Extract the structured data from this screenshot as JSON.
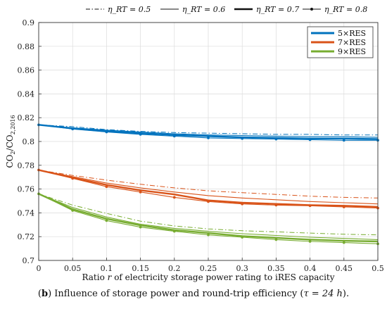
{
  "chart_data": {
    "type": "line",
    "x_label_parts": [
      "Ratio ",
      "r",
      " of electricity storage power rating to iRES capacity"
    ],
    "y_label_parts": [
      "CO",
      "2",
      "/CO",
      "2,2016"
    ],
    "x_ticks": [
      "0",
      "0.05",
      "0.1",
      "0.15",
      "0.2",
      "0.25",
      "0.3",
      "0.35",
      "0.4",
      "0.45",
      "0.5"
    ],
    "y_ticks": [
      "0.7",
      "0.72",
      "0.74",
      "0.76",
      "0.78",
      "0.8",
      "0.82",
      "0.84",
      "0.86",
      "0.88",
      "0.9"
    ],
    "xlim": [
      0,
      0.5
    ],
    "ylim": [
      0.7,
      0.9
    ],
    "grid": true,
    "top_legend_position": "above plot",
    "color_legend_position": "top-right",
    "style_legend": [
      {
        "label": "η_RT = 0.5",
        "style": "dashdot"
      },
      {
        "label": "η_RT = 0.6",
        "style": "thin"
      },
      {
        "label": "η_RT = 0.7",
        "style": "thick"
      },
      {
        "label": "η_RT = 0.8",
        "style": "marker"
      }
    ],
    "color_legend": [
      {
        "label": "5×RES",
        "color": "#0072BD"
      },
      {
        "label": "7×RES",
        "color": "#D95319"
      },
      {
        "label": "9×RES",
        "color": "#77AC30"
      }
    ],
    "x": [
      0,
      0.05,
      0.1,
      0.15,
      0.2,
      0.25,
      0.3,
      0.35,
      0.4,
      0.45,
      0.5
    ],
    "series": [
      {
        "group": "5×RES",
        "eta": "η_RT = 0.5",
        "color": "#0072BD",
        "style": "dashdot",
        "values": [
          0.814,
          0.8125,
          0.81,
          0.8085,
          0.8075,
          0.807,
          0.8065,
          0.806,
          0.806,
          0.8055,
          0.8055
        ]
      },
      {
        "group": "5×RES",
        "eta": "η_RT = 0.6",
        "color": "#0072BD",
        "style": "thin",
        "values": [
          0.814,
          0.8115,
          0.8095,
          0.808,
          0.8065,
          0.8055,
          0.805,
          0.8045,
          0.804,
          0.804,
          0.8035
        ]
      },
      {
        "group": "5×RES",
        "eta": "η_RT = 0.7",
        "color": "#0072BD",
        "style": "thick",
        "values": [
          0.814,
          0.811,
          0.8085,
          0.807,
          0.8055,
          0.8045,
          0.8035,
          0.803,
          0.8025,
          0.8025,
          0.802
        ]
      },
      {
        "group": "5×RES",
        "eta": "η_RT = 0.8",
        "color": "#0072BD",
        "style": "marker",
        "values": [
          0.814,
          0.8105,
          0.808,
          0.806,
          0.8045,
          0.803,
          0.8025,
          0.802,
          0.8015,
          0.801,
          0.801
        ]
      },
      {
        "group": "7×RES",
        "eta": "η_RT = 0.5",
        "color": "#D95319",
        "style": "dashdot",
        "values": [
          0.776,
          0.7715,
          0.7675,
          0.764,
          0.761,
          0.7585,
          0.757,
          0.7555,
          0.754,
          0.753,
          0.7525
        ]
      },
      {
        "group": "7×RES",
        "eta": "η_RT = 0.6",
        "color": "#D95319",
        "style": "thin",
        "values": [
          0.776,
          0.7705,
          0.765,
          0.761,
          0.7575,
          0.7545,
          0.7525,
          0.751,
          0.7495,
          0.7485,
          0.7475
        ]
      },
      {
        "group": "7×RES",
        "eta": "η_RT = 0.7",
        "color": "#D95319",
        "style": "thick",
        "values": [
          0.776,
          0.7695,
          0.7635,
          0.759,
          0.7555,
          0.7505,
          0.7485,
          0.7475,
          0.7465,
          0.746,
          0.745
        ]
      },
      {
        "group": "7×RES",
        "eta": "η_RT = 0.8",
        "color": "#D95319",
        "style": "marker",
        "values": [
          0.776,
          0.769,
          0.762,
          0.7575,
          0.753,
          0.7495,
          0.7475,
          0.7465,
          0.746,
          0.745,
          0.744
        ]
      },
      {
        "group": "9×RES",
        "eta": "η_RT = 0.5",
        "color": "#77AC30",
        "style": "dashdot",
        "values": [
          0.756,
          0.7465,
          0.7395,
          0.733,
          0.729,
          0.7265,
          0.725,
          0.724,
          0.723,
          0.722,
          0.7215
        ]
      },
      {
        "group": "9×RES",
        "eta": "η_RT = 0.6",
        "color": "#77AC30",
        "style": "thin",
        "values": [
          0.756,
          0.7445,
          0.7365,
          0.7305,
          0.727,
          0.7245,
          0.7225,
          0.721,
          0.7195,
          0.7185,
          0.7175
        ]
      },
      {
        "group": "9×RES",
        "eta": "η_RT = 0.7",
        "color": "#77AC30",
        "style": "thick",
        "values": [
          0.756,
          0.743,
          0.735,
          0.7295,
          0.7255,
          0.723,
          0.7205,
          0.719,
          0.7175,
          0.7165,
          0.716
        ]
      },
      {
        "group": "9×RES",
        "eta": "η_RT = 0.8",
        "color": "#77AC30",
        "style": "marker",
        "values": [
          0.756,
          0.742,
          0.7335,
          0.728,
          0.7245,
          0.7215,
          0.7195,
          0.7175,
          0.716,
          0.715,
          0.714
        ]
      }
    ]
  },
  "caption": {
    "prefix": "(",
    "panel": "b",
    "suffix": ") Influence of storage power and round-trip efficiency (",
    "tau_text": "τ = 24 h",
    "end": ")."
  }
}
